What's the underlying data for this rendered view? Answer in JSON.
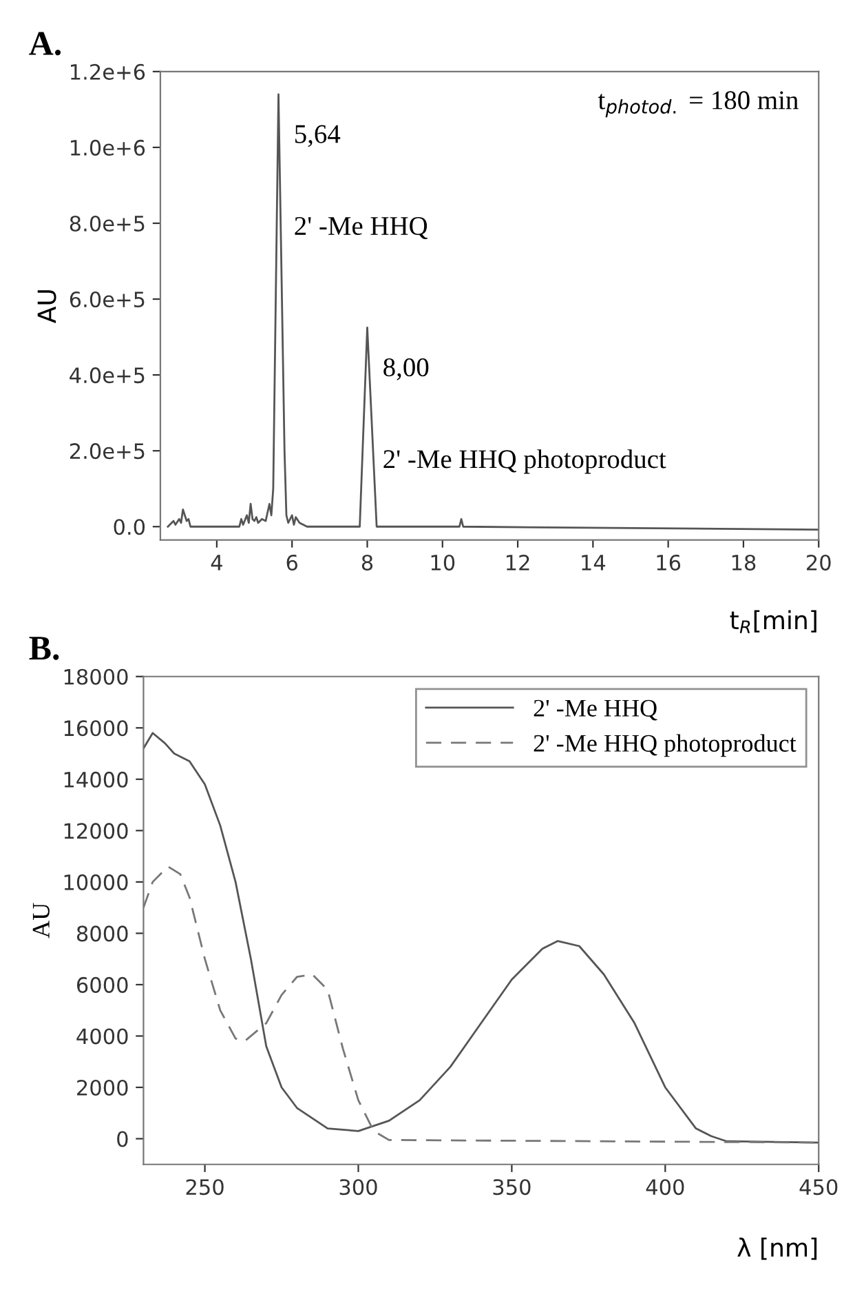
{
  "chart_data": [
    {
      "type": "line",
      "title": "A.",
      "xlabel": "t$_{R}$[min]",
      "ylabel": "AU",
      "xlim": [
        2.5,
        20
      ],
      "xticks": [
        4,
        6,
        8,
        10,
        12,
        14,
        16,
        18,
        20
      ],
      "ylim": [
        -35000,
        1200000
      ],
      "yticks": [
        {
          "value": 0,
          "label": "0.0"
        },
        {
          "value": 200000,
          "label": "2.0e+5"
        },
        {
          "value": 400000,
          "label": "4.0e+5"
        },
        {
          "value": 600000,
          "label": "6.0e+5"
        },
        {
          "value": 800000,
          "label": "8.0e+5"
        },
        {
          "value": 1000000,
          "label": "1.0e+6"
        },
        {
          "value": 1200000,
          "label": "1.2e+6"
        }
      ],
      "grid": false,
      "legend": false,
      "series": [
        {
          "color": "#555555",
          "line_style": "solid",
          "x": [
            2.7,
            2.85,
            2.9,
            3.0,
            3.05,
            3.1,
            3.2,
            3.25,
            3.3,
            4.6,
            4.65,
            4.7,
            4.8,
            4.85,
            4.9,
            4.95,
            5.0,
            5.05,
            5.1,
            5.2,
            5.3,
            5.4,
            5.45,
            5.5,
            5.64,
            5.8,
            5.85,
            5.9,
            6.0,
            6.05,
            6.1,
            6.2,
            6.3,
            6.4,
            7.8,
            8.0,
            8.25,
            10.45,
            10.5,
            10.55,
            20
          ],
          "values": [
            0,
            15000,
            5000,
            20000,
            10000,
            45000,
            15000,
            20000,
            0,
            0,
            20000,
            5000,
            30000,
            10000,
            60000,
            20000,
            15000,
            25000,
            10000,
            20000,
            15000,
            60000,
            30000,
            100000,
            1140000,
            200000,
            30000,
            10000,
            30000,
            5000,
            25000,
            10000,
            5000,
            0,
            0,
            525000,
            0,
            0,
            20000,
            0,
            -8000
          ]
        }
      ],
      "annotations": [
        {
          "text": "5,64",
          "x": 5.64,
          "y": 1140000
        },
        "2' -Me HHQ",
        {
          "text": "8,00",
          "x": 8.0,
          "y": 525000
        },
        "2' -Me HHQ photoproduct",
        "t$_{photod.}$ = 180 min"
      ]
    },
    {
      "type": "line",
      "title": "B.",
      "xlabel": "λ [nm]",
      "ylabel": "AU",
      "xlim": [
        230,
        450
      ],
      "xticks": [
        250,
        300,
        350,
        400,
        450
      ],
      "ylim": [
        -1000,
        18000
      ],
      "yticks": [
        0,
        2000,
        4000,
        6000,
        8000,
        10000,
        12000,
        14000,
        16000,
        18000
      ],
      "grid": false,
      "legend": "top right",
      "series": [
        {
          "name": "2' -Me HHQ",
          "color": "#555555",
          "line_style": "solid",
          "x": [
            230,
            233,
            237,
            240,
            245,
            250,
            255,
            260,
            265,
            270,
            275,
            280,
            290,
            300,
            310,
            320,
            330,
            340,
            350,
            360,
            365,
            372,
            380,
            390,
            400,
            410,
            415,
            420,
            450
          ],
          "values": [
            15200,
            15800,
            15400,
            15000,
            14700,
            13800,
            12200,
            10000,
            7000,
            3600,
            2000,
            1200,
            400,
            300,
            700,
            1500,
            2800,
            4500,
            6200,
            7400,
            7700,
            7500,
            6400,
            4500,
            2000,
            400,
            100,
            -100,
            -150
          ]
        },
        {
          "name": "2' -Me HHQ photoproduct",
          "color": "#777777",
          "line_style": "dashed",
          "x": [
            230,
            233,
            238,
            242,
            245,
            250,
            255,
            260,
            263,
            270,
            275,
            280,
            285,
            290,
            295,
            300,
            305,
            310,
            450
          ],
          "values": [
            9000,
            10000,
            10600,
            10300,
            9400,
            7000,
            5000,
            3900,
            3800,
            4500,
            5600,
            6300,
            6400,
            5800,
            3500,
            1500,
            300,
            -50,
            -150
          ]
        }
      ]
    }
  ]
}
